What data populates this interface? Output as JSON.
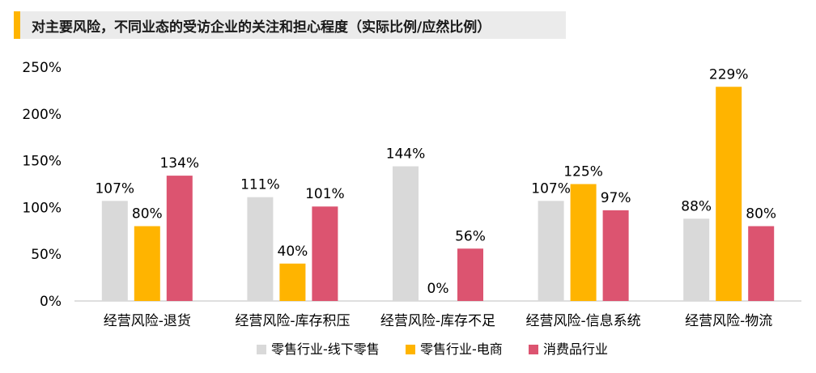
{
  "chart_data": {
    "type": "bar",
    "title": "对主要风险，不同业态的受访企业的关注和担心程度（实际比例/应然比例）",
    "categories": [
      "经营风险-退货",
      "经营风险-库存积压",
      "经营风险-库存不足",
      "经营风险-信息系统",
      "经营风险-物流"
    ],
    "series": [
      {
        "name": "零售行业-线下零售",
        "color": "#d9d9d9",
        "values": [
          107,
          111,
          144,
          107,
          88
        ],
        "labels": [
          "107%",
          "111%",
          "144%",
          "107%",
          "88%"
        ]
      },
      {
        "name": "零售行业-电商",
        "color": "#ffb400",
        "values": [
          80,
          40,
          0,
          125,
          229
        ],
        "labels": [
          "80%",
          "40%",
          "0%",
          "125%",
          "229%"
        ]
      },
      {
        "name": "消费品行业",
        "color": "#dc5470",
        "values": [
          134,
          101,
          56,
          97,
          80
        ],
        "labels": [
          "134%",
          "101%",
          "56%",
          "97%",
          "80%"
        ]
      }
    ],
    "yticks": [
      "0%",
      "50%",
      "100%",
      "150%",
      "200%",
      "250%"
    ],
    "ylim": [
      0,
      250
    ],
    "legend_position": "bottom",
    "grid": false
  }
}
